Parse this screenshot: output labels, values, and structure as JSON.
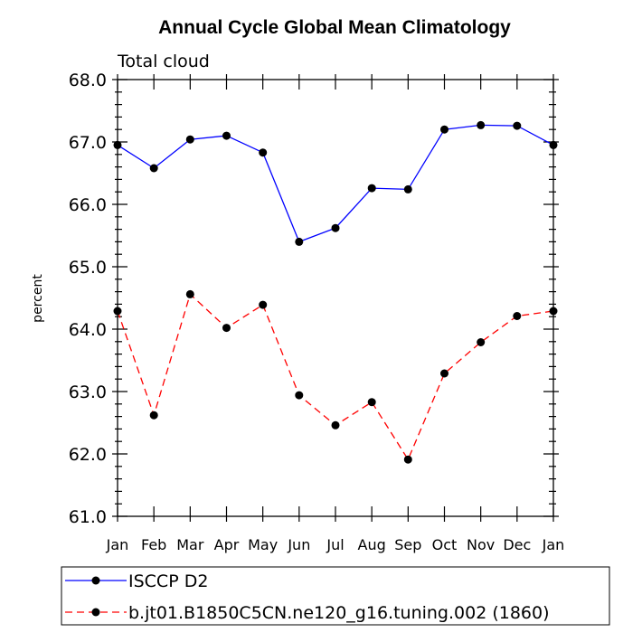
{
  "chart_data": {
    "type": "line",
    "title": "Annual Cycle Global Mean Climatology",
    "subtitle": "Total cloud",
    "xlabel": "",
    "ylabel": "percent",
    "categories": [
      "Jan",
      "Feb",
      "Mar",
      "Apr",
      "May",
      "Jun",
      "Jul",
      "Aug",
      "Sep",
      "Oct",
      "Nov",
      "Dec",
      "Jan"
    ],
    "ylim": [
      61.0,
      68.0
    ],
    "yticks": [
      61.0,
      62.0,
      63.0,
      64.0,
      65.0,
      66.0,
      67.0,
      68.0
    ],
    "ytick_labels": [
      "61.0",
      "62.0",
      "63.0",
      "64.0",
      "65.0",
      "66.0",
      "67.0",
      "68.0"
    ],
    "grid": false,
    "legend_position": "bottom",
    "series": [
      {
        "name": "ISCCP D2",
        "color": "#0000ff",
        "dash": "solid",
        "values": [
          66.95,
          66.58,
          67.04,
          67.1,
          66.83,
          65.4,
          65.62,
          66.26,
          66.24,
          67.2,
          67.27,
          67.26,
          66.95
        ]
      },
      {
        "name": "b.jt01.B1850C5CN.ne120_g16.tuning.002 (1860)",
        "color": "#ff0000",
        "dash": "dashed",
        "values": [
          64.29,
          62.62,
          64.56,
          64.02,
          64.39,
          62.94,
          62.46,
          62.83,
          61.91,
          63.29,
          63.79,
          64.21,
          64.29
        ]
      }
    ]
  }
}
